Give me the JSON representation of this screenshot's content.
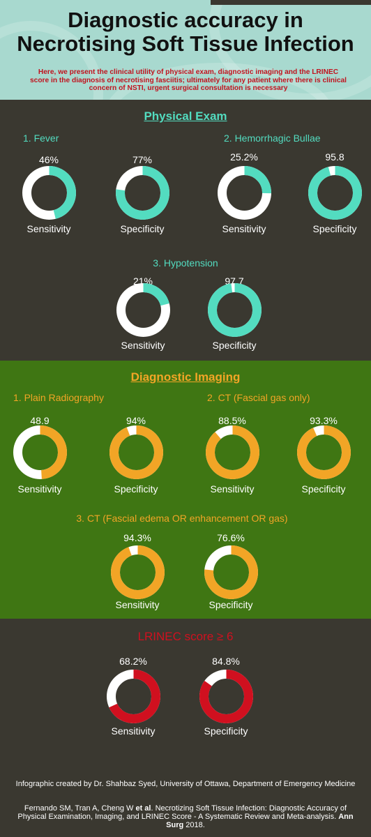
{
  "header": {
    "title_line1": "Diagnostic accuracy in",
    "title_line2": "Necrotising Soft Tissue Infection",
    "subtitle": "Here, we present the clinical utility of physical exam, diagnostic imaging and the LRINEC score in the diagnosis of necrotising fasciitis; ultimately  for any patient where there is clinical concern  of NSTI, urgent surgical consultation is necessary"
  },
  "colors": {
    "teal": "#53dcc0",
    "orange": "#f2a526",
    "red": "#d0101f",
    "remainder": "#ffffff",
    "dark_bg": "#3a3830",
    "green_bg": "#3f7613"
  },
  "sections": {
    "physical": "Physical Exam",
    "imaging": "Diagnostic Imaging",
    "lrinec": "LRINEC score ≥ 6"
  },
  "chart_data": [
    {
      "type": "pie",
      "section": "Physical Exam",
      "subtitle": "1. Fever",
      "series": [
        {
          "name": "Sensitivity",
          "value": 46,
          "label": "46%"
        },
        {
          "name": "Specificity",
          "value": 77,
          "label": "77%"
        }
      ]
    },
    {
      "type": "pie",
      "section": "Physical Exam",
      "subtitle": "2. Hemorrhagic Bullae",
      "series": [
        {
          "name": "Sensitivity",
          "value": 25.2,
          "label": "25.2%"
        },
        {
          "name": "Specificity",
          "value": 95.8,
          "label": "95.8"
        }
      ]
    },
    {
      "type": "pie",
      "section": "Physical Exam",
      "subtitle": "3. Hypotension",
      "series": [
        {
          "name": "Sensitivity",
          "value": 21,
          "label": "21%"
        },
        {
          "name": "Specificity",
          "value": 97.7,
          "label": "97.7"
        }
      ]
    },
    {
      "type": "pie",
      "section": "Diagnostic Imaging",
      "subtitle": "1. Plain Radiography",
      "series": [
        {
          "name": "Sensitivity",
          "value": 48.9,
          "label": "48.9"
        },
        {
          "name": "Specificity",
          "value": 94,
          "label": "94%"
        }
      ]
    },
    {
      "type": "pie",
      "section": "Diagnostic Imaging",
      "subtitle": "2. CT (Fascial gas only)",
      "series": [
        {
          "name": "Sensitivity",
          "value": 88.5,
          "label": "88.5%"
        },
        {
          "name": "Specificity",
          "value": 93.3,
          "label": "93.3%"
        }
      ]
    },
    {
      "type": "pie",
      "section": "Diagnostic Imaging",
      "subtitle": "3. CT (Fascial edema OR enhancement OR gas)",
      "series": [
        {
          "name": "Sensitivity",
          "value": 94.3,
          "label": "94.3%"
        },
        {
          "name": "Specificity",
          "value": 76.6,
          "label": "76.6%"
        }
      ]
    },
    {
      "type": "pie",
      "section": "LRINEC score ≥ 6",
      "subtitle": "",
      "series": [
        {
          "name": "Sensitivity",
          "value": 68.2,
          "label": "68.2%"
        },
        {
          "name": "Specificity",
          "value": 84.8,
          "label": "84.8%"
        }
      ]
    }
  ],
  "footer": {
    "credit": "Infographic created by Dr. Shahbaz Syed, University of Ottawa, Department of Emergency Medicine",
    "citation_pre": "Fernando SM, Tran A, Cheng W ",
    "citation_etal": "et al",
    "citation_mid": ". Necrotizing Soft Tissue Infection: Diagnostic Accuracy of Physical Examination, Imaging, and LRINEC Score - A Systematic Review and Meta-analysis. ",
    "citation_journal": "Ann Surg",
    "citation_post": " 2018."
  }
}
